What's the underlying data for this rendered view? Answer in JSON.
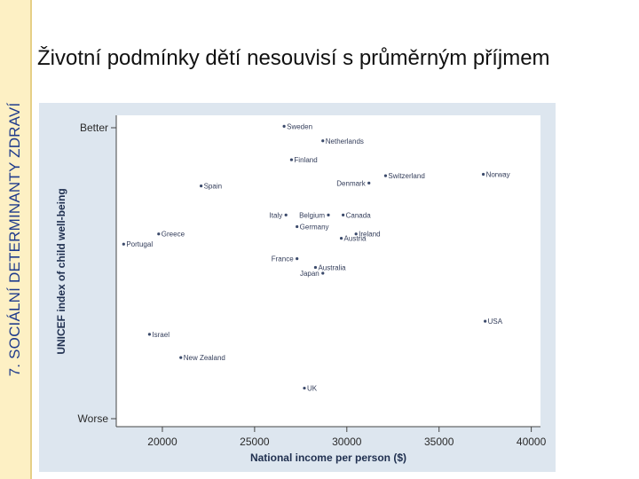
{
  "sidebar": {
    "label": "7. SOCIÁLNÍ DETERMINANTY ZDRAVÍ"
  },
  "slide": {
    "title": "Životní podmínky dětí nesouvisí s průměrným příjmem"
  },
  "colors": {
    "sidebar_bg": "#fdf0c4",
    "sidebar_text": "#1f3b8c",
    "chart_bg": "#dde6ef",
    "point": "#3b4a6b"
  },
  "chart_data": {
    "type": "scatter",
    "title": "",
    "xlabel": "National income per person ($)",
    "ylabel": "UNICEF index of child well-being",
    "xlim": [
      17500,
      40500
    ],
    "ylim": [
      0,
      100
    ],
    "x_ticks": [
      20000,
      25000,
      30000,
      35000,
      40000
    ],
    "x_tick_labels": [
      "20000",
      "25000",
      "30000",
      "35000",
      "40000"
    ],
    "y_ticks": [
      {
        "value": 100,
        "label": "Better"
      },
      {
        "value": 0,
        "label": "Worse"
      }
    ],
    "grid": false,
    "legend": "none",
    "points": [
      {
        "name": "Sweden",
        "x": 26600,
        "y": 100.5,
        "label_side": "right"
      },
      {
        "name": "Netherlands",
        "x": 28700,
        "y": 95.5,
        "label_side": "right"
      },
      {
        "name": "Finland",
        "x": 27000,
        "y": 89,
        "label_side": "right"
      },
      {
        "name": "Switzerland",
        "x": 32100,
        "y": 83.5,
        "label_side": "right"
      },
      {
        "name": "Norway",
        "x": 37400,
        "y": 84,
        "label_side": "right"
      },
      {
        "name": "Denmark",
        "x": 31200,
        "y": 81,
        "label_side": "left"
      },
      {
        "name": "Spain",
        "x": 22100,
        "y": 80,
        "label_side": "right"
      },
      {
        "name": "Italy",
        "x": 26700,
        "y": 70,
        "label_side": "left"
      },
      {
        "name": "Belgium",
        "x": 29000,
        "y": 70,
        "label_side": "left"
      },
      {
        "name": "Canada",
        "x": 29800,
        "y": 70,
        "label_side": "right"
      },
      {
        "name": "Germany",
        "x": 27300,
        "y": 66,
        "label_side": "right"
      },
      {
        "name": "Greece",
        "x": 19800,
        "y": 63.5,
        "label_side": "right"
      },
      {
        "name": "Ireland",
        "x": 30500,
        "y": 63.5,
        "label_side": "right"
      },
      {
        "name": "Austria",
        "x": 29700,
        "y": 62,
        "label_side": "right"
      },
      {
        "name": "Portugal",
        "x": 17900,
        "y": 60,
        "label_side": "right"
      },
      {
        "name": "France",
        "x": 27300,
        "y": 55,
        "label_side": "left"
      },
      {
        "name": "Australia",
        "x": 28300,
        "y": 52,
        "label_side": "right"
      },
      {
        "name": "Japan",
        "x": 28700,
        "y": 50,
        "label_side": "left"
      },
      {
        "name": "USA",
        "x": 37500,
        "y": 33.5,
        "label_side": "right"
      },
      {
        "name": "Israel",
        "x": 19300,
        "y": 29,
        "label_side": "right"
      },
      {
        "name": "New Zealand",
        "x": 21000,
        "y": 21,
        "label_side": "right"
      },
      {
        "name": "UK",
        "x": 27700,
        "y": 10.5,
        "label_side": "right"
      }
    ]
  }
}
